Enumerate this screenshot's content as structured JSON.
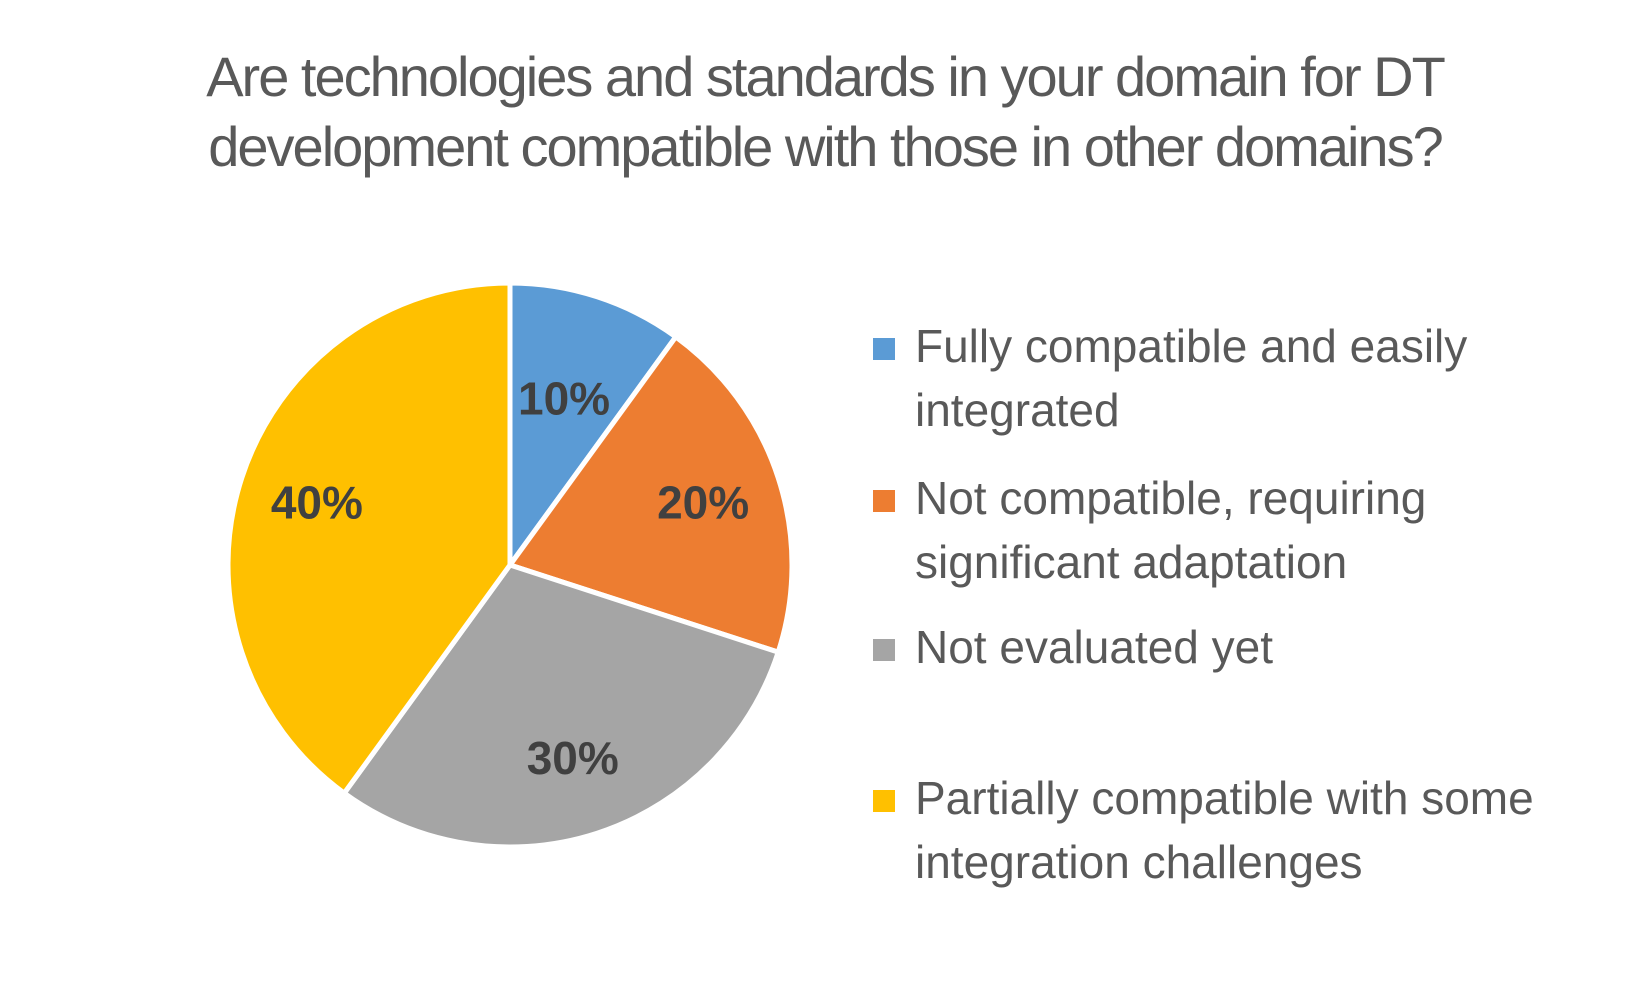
{
  "chart_data": {
    "type": "pie",
    "title_lines": [
      "Are technologies and standards in your domain for DT",
      "development compatible with those in other domains?"
    ],
    "categories": [
      "Fully compatible and easily integrated",
      "Not compatible, requiring significant adaptation",
      "Not evaluated yet",
      "Partially compatible with some integration challenges"
    ],
    "values": [
      10,
      20,
      30,
      40
    ],
    "data_labels": [
      "10%",
      "20%",
      "30%",
      "40%"
    ],
    "colors": [
      "#5B9BD5",
      "#ED7D31",
      "#A5A5A5",
      "#FFC000"
    ],
    "legend_position": "right",
    "start_angle": "12 o'clock, clockwise"
  }
}
